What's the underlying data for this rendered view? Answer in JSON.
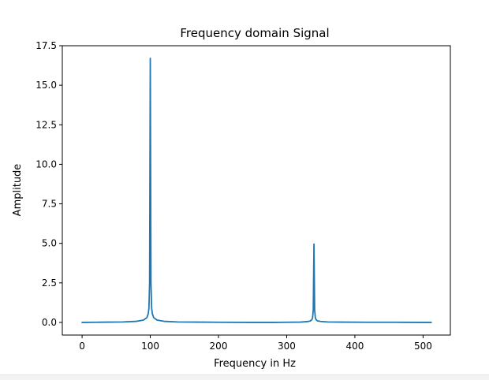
{
  "chart_data": {
    "type": "line",
    "title": "Frequency domain Signal",
    "xlabel": "Frequency in Hz",
    "ylabel": "Amplitude",
    "xlim": [
      -29,
      540
    ],
    "ylim": [
      -0.8,
      17.5
    ],
    "xticks": [
      0,
      100,
      200,
      300,
      400,
      500
    ],
    "yticks": [
      0.0,
      2.5,
      5.0,
      7.5,
      10.0,
      12.5,
      15.0,
      17.5
    ],
    "xtick_labels": [
      "0",
      "100",
      "200",
      "300",
      "400",
      "500"
    ],
    "ytick_labels": [
      "0.0",
      "2.5",
      "5.0",
      "7.5",
      "10.0",
      "12.5",
      "15.0",
      "17.5"
    ],
    "grid": false,
    "series": [
      {
        "color": "#1f77b4",
        "peaks": [
          {
            "x": 100,
            "y": 16.7
          },
          {
            "x": 340,
            "y": 4.95
          }
        ],
        "x": [
          0,
          20,
          40,
          60,
          80,
          90,
          95,
          97,
          98,
          99,
          100,
          101,
          102,
          103,
          105,
          110,
          120,
          140,
          170,
          200,
          250,
          280,
          300,
          320,
          330,
          335,
          337,
          338,
          339,
          340,
          341,
          342,
          343,
          345,
          350,
          360,
          380,
          420,
          460,
          500,
          512
        ],
        "y": [
          0.0,
          0.01,
          0.02,
          0.03,
          0.07,
          0.15,
          0.3,
          0.55,
          0.9,
          2.5,
          16.7,
          2.5,
          0.9,
          0.55,
          0.3,
          0.15,
          0.07,
          0.03,
          0.02,
          0.01,
          0.0,
          0.0,
          0.01,
          0.02,
          0.05,
          0.1,
          0.18,
          0.3,
          0.8,
          4.95,
          0.8,
          0.3,
          0.18,
          0.1,
          0.06,
          0.03,
          0.02,
          0.01,
          0.01,
          0.0,
          0.0
        ]
      }
    ]
  }
}
